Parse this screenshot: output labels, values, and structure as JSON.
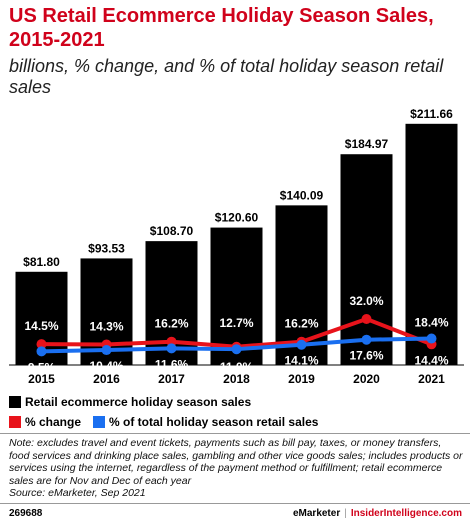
{
  "header": {
    "title": "US Retail Ecommerce Holiday Season Sales, 2015-2021",
    "subtitle": "billions, % change, and % of total holiday season retail sales"
  },
  "chart_data": {
    "type": "bar",
    "categories": [
      "2015",
      "2016",
      "2017",
      "2018",
      "2019",
      "2020",
      "2021"
    ],
    "ylim": [
      0,
      215
    ],
    "series": [
      {
        "name": "Retail ecommerce holiday season sales",
        "kind": "bar",
        "color": "#000000",
        "values": [
          81.8,
          93.53,
          108.7,
          120.6,
          140.09,
          184.97,
          211.66
        ],
        "labels": [
          "$81.80",
          "$93.53",
          "$108.70",
          "$120.60",
          "$140.09",
          "$184.97",
          "$211.66"
        ]
      },
      {
        "name": "% change",
        "kind": "line",
        "color": "#e8131b",
        "values": [
          14.5,
          14.3,
          16.2,
          12.7,
          16.2,
          32.0,
          14.4
        ],
        "labels": [
          "14.5%",
          "14.3%",
          "16.2%",
          "12.7%",
          "16.2%",
          "32.0%",
          "14.4%"
        ]
      },
      {
        "name": "% of total holiday season retail sales",
        "kind": "line",
        "color": "#1a6ff0",
        "values": [
          9.5,
          10.4,
          11.6,
          11.0,
          14.1,
          17.6,
          18.4
        ],
        "labels": [
          "9.5%",
          "10.4%",
          "11.6%",
          "11.0%",
          "14.1%",
          "17.6%",
          "18.4%"
        ]
      }
    ],
    "pct_axis": [
      0,
      80
    ]
  },
  "legend": {
    "items": [
      {
        "label": "Retail ecommerce holiday season sales",
        "color": "#000000"
      },
      {
        "label": "% change",
        "color": "#e8131b"
      },
      {
        "label": "% of total holiday season retail sales",
        "color": "#1a6ff0"
      }
    ]
  },
  "note": {
    "text": "Note: excludes travel and event tickets, payments such as bill pay, taxes, or money transfers, food services and drinking place sales, gambling and other vice goods sales; includes products or services using the internet, regardless of the payment method or fulfillment; retail ecommerce sales are for Nov and Dec of each year",
    "source": "Source: eMarketer, Sep 2021"
  },
  "footer": {
    "id": "269688",
    "brand1": "eMarketer",
    "separator": "|",
    "brand2": "InsiderIntelligence.com"
  }
}
